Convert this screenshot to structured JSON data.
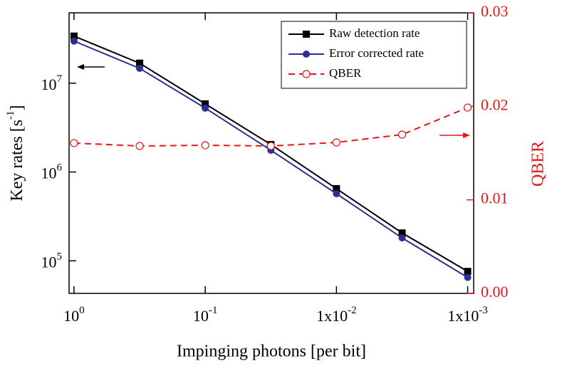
{
  "chart_data": {
    "type": "line",
    "xlabel": "Impinging photons [per bit]",
    "ylabel": {
      "main": "Key rates [s",
      "sup": "-1",
      "end": "]"
    },
    "y2label": "QBER",
    "x": [
      1,
      0.316,
      0.1,
      0.0316,
      0.01,
      0.00316,
      0.001
    ],
    "xlim": [
      1.09,
      0.0009
    ],
    "xscale": "log",
    "xticks": [
      {
        "value": 1,
        "label": "10",
        "power": "0"
      },
      {
        "value": 0.1,
        "label": "10",
        "power": "-1"
      },
      {
        "value": 0.01,
        "label": "1x10",
        "power": "-2"
      },
      {
        "value": 0.001,
        "label": "1x10",
        "power": "-3"
      }
    ],
    "ylim": [
      43000,
      62000000
    ],
    "yscale": "log",
    "yticks": [
      {
        "value": 100000,
        "label": "10",
        "power": "5"
      },
      {
        "value": 1000000,
        "label": "10",
        "power": "6"
      },
      {
        "value": 10000000,
        "label": "10",
        "power": "7"
      }
    ],
    "y2lim": [
      0,
      0.03
    ],
    "y2ticks": [
      {
        "value": 0,
        "label": "0.00"
      },
      {
        "value": 0.01,
        "label": "0.01"
      },
      {
        "value": 0.02,
        "label": "0.02"
      },
      {
        "value": 0.03,
        "label": "0.03"
      }
    ],
    "y2color": "#e8151b",
    "legend": "upper right",
    "series": [
      {
        "name": "Raw detection rate",
        "color": "#000000",
        "marker": "square",
        "dash": false,
        "values": [
          33900000,
          16800000,
          5850000,
          2040000,
          650000,
          206000,
          76000
        ]
      },
      {
        "name": "Error corrected rate",
        "color": "#2b2f8f",
        "marker": "circle",
        "dash": false,
        "values": [
          29800000,
          14700000,
          5240000,
          1760000,
          570000,
          181000,
          65000
        ]
      },
      {
        "name": "QBER",
        "color": "#e8151b",
        "marker": "open-circle",
        "dash": true,
        "axis": "y2",
        "values": [
          0.01607,
          0.01576,
          0.01584,
          0.01576,
          0.01614,
          0.01698,
          0.01987
        ]
      }
    ]
  }
}
